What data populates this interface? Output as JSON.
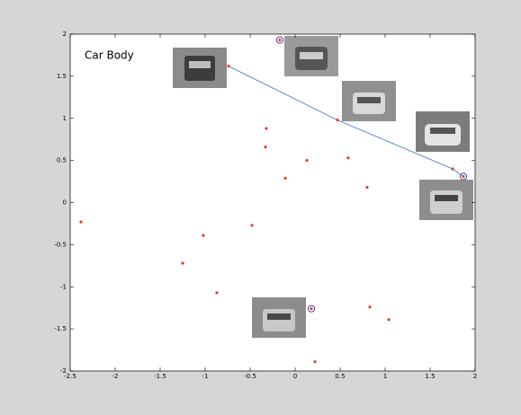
{
  "chart_data": {
    "type": "scatter",
    "annotation": "Car Body",
    "x": [
      -2.38,
      -1.25,
      -1.02,
      -0.87,
      -0.74,
      -0.48,
      -0.32,
      -0.33,
      -0.17,
      -0.11,
      0.13,
      0.18,
      0.22,
      0.47,
      0.59,
      0.8,
      0.83,
      1.04,
      1.75,
      1.87
    ],
    "y": [
      -0.23,
      -0.72,
      -0.39,
      -1.07,
      1.62,
      -0.27,
      0.88,
      0.66,
      1.93,
      0.29,
      0.5,
      -1.26,
      -1.89,
      0.98,
      0.53,
      0.18,
      -1.24,
      -1.39,
      0.4,
      0.31
    ],
    "color": "#e8401c",
    "path": {
      "x": [
        -0.74,
        0.47,
        1.75,
        1.87
      ],
      "y": [
        1.62,
        0.98,
        0.4,
        0.31
      ],
      "color": "#3a6fd8"
    },
    "highlight": {
      "x": [
        -0.17,
        0.18,
        1.87
      ],
      "y": [
        1.93,
        -1.26,
        0.31
      ],
      "color": "#2a2a9a"
    },
    "xlim": [
      -2.5,
      2
    ],
    "ylim": [
      -2,
      2
    ],
    "xticks": [
      -2.5,
      -2,
      -1.5,
      -1,
      -0.5,
      0,
      0.5,
      1,
      1.5,
      2
    ],
    "yticks": [
      -2,
      -1.5,
      -1,
      -0.5,
      0,
      0.5,
      1,
      1.5,
      2
    ]
  }
}
